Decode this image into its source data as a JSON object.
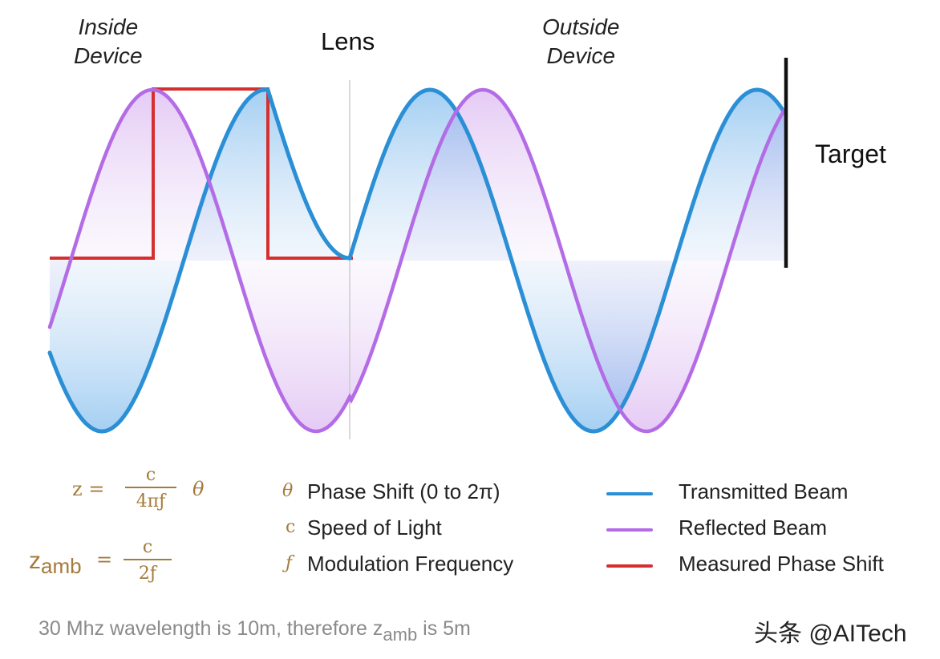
{
  "labels": {
    "inside_device": [
      "Inside",
      "Device"
    ],
    "lens": "Lens",
    "outside_device": [
      "Outside",
      "Device"
    ],
    "target": "Target"
  },
  "formulas": {
    "z": {
      "lhs": "z =",
      "num": "c",
      "den": "4πƒ",
      "tail": "θ"
    },
    "zamb": {
      "lhs_main": "z",
      "lhs_sub": "amb",
      "eq": "=",
      "num": "c",
      "den": "2ƒ"
    }
  },
  "variables": [
    {
      "symbol": "θ",
      "text": "Phase Shift (0 to 2π)"
    },
    {
      "symbol": "c",
      "text": "Speed of Light"
    },
    {
      "symbol": "ƒ",
      "text": "Modulation Frequency"
    }
  ],
  "legend": [
    {
      "label": "Transmitted Beam",
      "color": "#2b8fd6"
    },
    {
      "label": "Reflected Beam",
      "color": "#b46ce6"
    },
    {
      "label": "Measured Phase Shift",
      "color": "#d62f2f"
    }
  ],
  "note": {
    "pre": "30 Mhz wavelength is 10m, therefore z",
    "sub": "amb",
    "post": " is 5m"
  },
  "watermark": "头条 @AITech",
  "colors": {
    "transmitted": "#2b8fd6",
    "reflected": "#b46ce6",
    "phase": "#d62f2f",
    "axis": "#111111",
    "formula": "#a57a3a"
  }
}
